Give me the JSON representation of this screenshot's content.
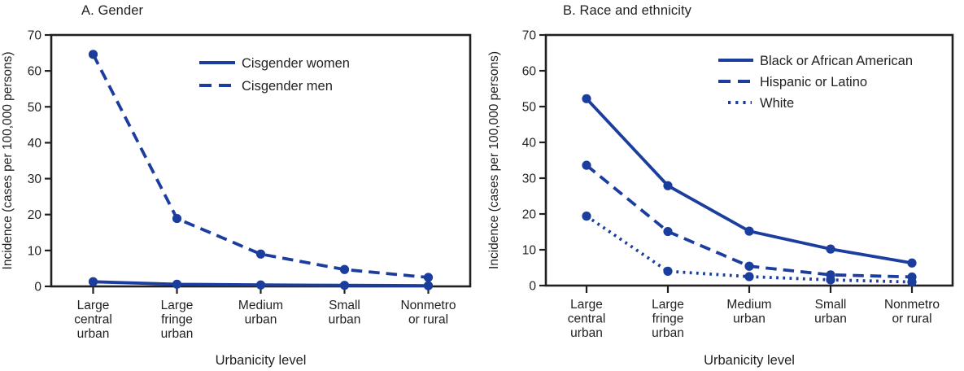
{
  "figure": {
    "colors": {
      "series_blue": "#1b3e9e",
      "axis": "#231f20",
      "text": "#231f20",
      "background": "#ffffff"
    }
  },
  "chart_data": [
    {
      "type": "line",
      "panel_label": "A. Gender",
      "xlabel": "Urbanicity level",
      "ylabel": "Incidence (cases per 100,000 persons)",
      "ylim": [
        0,
        70
      ],
      "yticks": [
        0,
        10,
        20,
        30,
        40,
        50,
        60,
        70
      ],
      "grid": false,
      "legend_position": "inside-top-right",
      "categories": [
        "Large central urban",
        "Large fringe urban",
        "Medium urban",
        "Small urban",
        "Nonmetro or rural"
      ],
      "category_lines": [
        [
          "Large",
          "central",
          "urban"
        ],
        [
          "Large",
          "fringe",
          "urban"
        ],
        [
          "Medium",
          "urban"
        ],
        [
          "Small",
          "urban"
        ],
        [
          "Nonmetro",
          "or rural"
        ]
      ],
      "series": [
        {
          "name": "Cisgender women",
          "line_style": "solid",
          "values": [
            1.3,
            0.6,
            0.4,
            0.3,
            0.2
          ]
        },
        {
          "name": "Cisgender men",
          "line_style": "dashed",
          "values": [
            64.6,
            18.9,
            9.0,
            4.7,
            2.5
          ]
        }
      ]
    },
    {
      "type": "line",
      "panel_label": "B. Race and ethnicity",
      "xlabel": "Urbanicity level",
      "ylabel": "Incidence (cases per 100,000 persons)",
      "ylim": [
        0,
        70
      ],
      "yticks": [
        0,
        10,
        20,
        30,
        40,
        50,
        60,
        70
      ],
      "grid": false,
      "legend_position": "inside-top-right",
      "categories": [
        "Large central urban",
        "Large fringe urban",
        "Medium urban",
        "Small urban",
        "Nonmetro or rural"
      ],
      "category_lines": [
        [
          "Large",
          "central",
          "urban"
        ],
        [
          "Large",
          "fringe",
          "urban"
        ],
        [
          "Medium",
          "urban"
        ],
        [
          "Small",
          "urban"
        ],
        [
          "Nonmetro",
          "or rural"
        ]
      ],
      "series": [
        {
          "name": "Black or African American",
          "line_style": "solid",
          "values": [
            52.2,
            27.9,
            15.2,
            10.2,
            6.3
          ]
        },
        {
          "name": "Hispanic or Latino",
          "line_style": "dashed",
          "values": [
            33.6,
            15.1,
            5.4,
            3.0,
            2.4
          ]
        },
        {
          "name": "White",
          "line_style": "dotted",
          "values": [
            19.4,
            4.0,
            2.5,
            1.6,
            1.0
          ]
        }
      ]
    }
  ]
}
